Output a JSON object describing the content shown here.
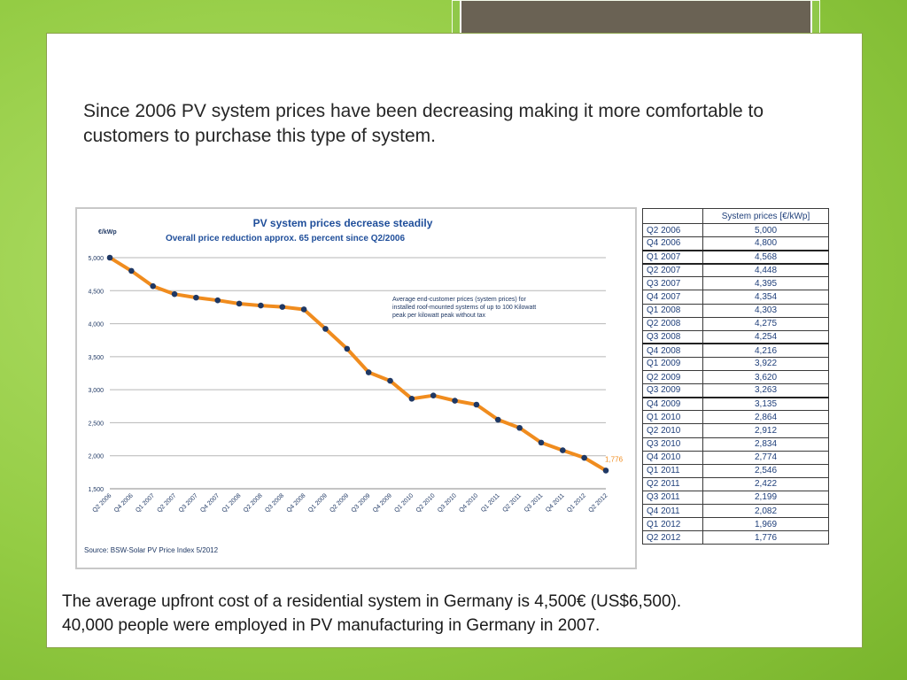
{
  "slide": {
    "headline": "Since 2006 PV system prices have been decreasing making it more comfortable to customers to purchase this type of system.",
    "footer_line1": "The average upfront cost of a residential system in Germany is 4,500€ (US$6,500).",
    "footer_line2": "40,000 people were employed in PV manufacturing in Germany in 2007."
  },
  "chart_data": {
    "type": "line",
    "title": "PV system prices decrease steadily",
    "subtitle": "Overall price reduction approx. 65 percent  since Q2/2006",
    "ylabel": "€/kWp",
    "ylim": [
      1500,
      5000
    ],
    "yticks": [
      5000,
      4500,
      4000,
      3500,
      3000,
      2500,
      2000,
      1500
    ],
    "ytick_labels": [
      "5,000",
      "4,500",
      "4,000",
      "3,500",
      "3,000",
      "2,500",
      "2,000",
      "1,500"
    ],
    "grid": true,
    "categories": [
      "Q2 2006",
      "Q4 2006",
      "Q1 2007",
      "Q2 2007",
      "Q3 2007",
      "Q4 2007",
      "Q1 2008",
      "Q2 2008",
      "Q3 2008",
      "Q4 2008",
      "Q1 2009",
      "Q2 2009",
      "Q3 2009",
      "Q4 2009",
      "Q1 2010",
      "Q2 2010",
      "Q3 2010",
      "Q4 2010",
      "Q1 2011",
      "Q2 2011",
      "Q3 2011",
      "Q4 2011",
      "Q1 2012",
      "Q2 2012"
    ],
    "series": [
      {
        "values": [
          5000,
          4800,
          4568,
          4448,
          4395,
          4354,
          4303,
          4275,
          4254,
          4216,
          3922,
          3620,
          3263,
          3135,
          2864,
          2912,
          2834,
          2774,
          2546,
          2422,
          2199,
          2082,
          1969,
          1776
        ]
      }
    ],
    "end_label": "1,776",
    "annotation": [
      "Average end-customer prices (system prices) for",
      "installed roof-mounted systems of up to 100 Kilowatt",
      "peak per kilowatt peak without tax"
    ],
    "source": "Source: BSW-Solar  PV Price Index 5/2012",
    "line_color": "#f08c1e",
    "marker_color": "#1f3864",
    "title_color": "#1f4e9a"
  },
  "table": {
    "header": "System prices [€/kWp]",
    "rows": [
      [
        "Q2 2006",
        "5,000"
      ],
      [
        "Q4 2006",
        "4,800"
      ],
      [
        "Q1 2007",
        "4,568"
      ],
      [
        "Q2 2007",
        "4,448"
      ],
      [
        "Q3 2007",
        "4,395"
      ],
      [
        "Q4 2007",
        "4,354"
      ],
      [
        "Q1 2008",
        "4,303"
      ],
      [
        "Q2 2008",
        "4,275"
      ],
      [
        "Q3 2008",
        "4,254"
      ],
      [
        "Q4 2008",
        "4,216"
      ],
      [
        "Q1 2009",
        "3,922"
      ],
      [
        "Q2 2009",
        "3,620"
      ],
      [
        "Q3 2009",
        "3,263"
      ],
      [
        "Q4 2009",
        "3,135"
      ],
      [
        "Q1 2010",
        "2,864"
      ],
      [
        "Q2 2010",
        "2,912"
      ],
      [
        "Q3 2010",
        "2,834"
      ],
      [
        "Q4 2010",
        "2,774"
      ],
      [
        "Q1 2011",
        "2,546"
      ],
      [
        "Q2 2011",
        "2,422"
      ],
      [
        "Q3 2011",
        "2,199"
      ],
      [
        "Q4 2011",
        "2,082"
      ],
      [
        "Q1 2012",
        "1,969"
      ],
      [
        "Q2 2012",
        "1,776"
      ]
    ]
  }
}
